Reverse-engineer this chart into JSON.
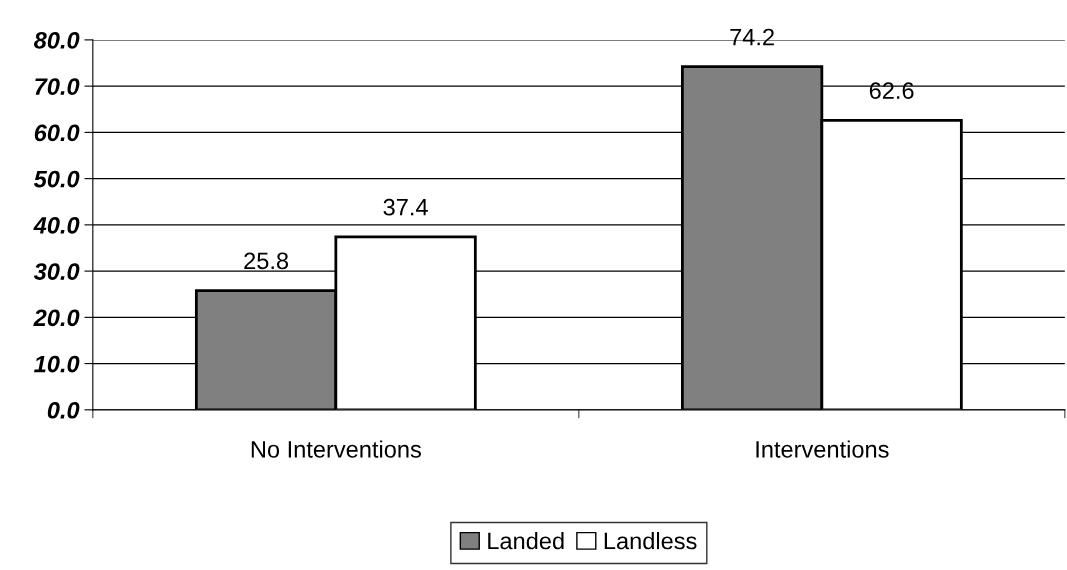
{
  "chart_data": {
    "type": "bar",
    "categories": [
      "No Interventions",
      "Interventions"
    ],
    "series": [
      {
        "name": "Landed",
        "color": "#808080",
        "values": [
          25.8,
          74.2
        ]
      },
      {
        "name": "Landless",
        "color": "#ffffff",
        "values": [
          37.4,
          62.6
        ]
      }
    ],
    "ylim": [
      0,
      80
    ],
    "yticks": [
      {
        "value": 0,
        "label": "0.0"
      },
      {
        "value": 10,
        "label": "10.0"
      },
      {
        "value": 20,
        "label": "20.0"
      },
      {
        "value": 30,
        "label": "30.0"
      },
      {
        "value": 40,
        "label": "40.0"
      },
      {
        "value": 50,
        "label": "50.0"
      },
      {
        "value": 60,
        "label": "60.0"
      },
      {
        "value": 70,
        "label": "70.0"
      },
      {
        "value": 80,
        "label": "80.0"
      }
    ],
    "grid": "y",
    "legend": "bottom",
    "data_labels": true
  }
}
